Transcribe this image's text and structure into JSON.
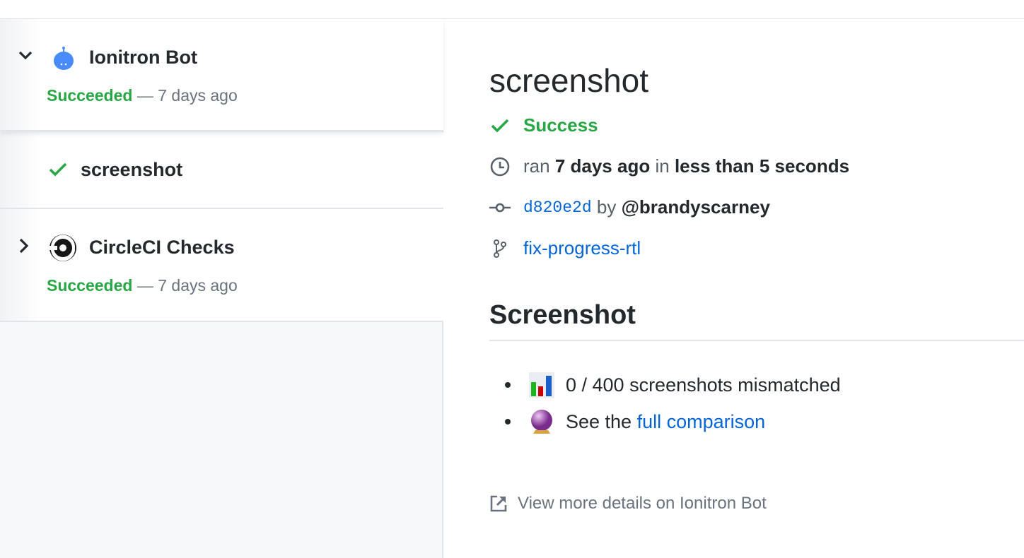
{
  "sidebar": {
    "suites": [
      {
        "name": "Ionitron Bot",
        "status": "Succeeded",
        "separator": "—",
        "time": "7 days ago",
        "expanded": true,
        "icon": "ionitron-bot-icon"
      },
      {
        "name": "CircleCI Checks",
        "status": "Succeeded",
        "separator": "—",
        "time": "7 days ago",
        "expanded": false,
        "icon": "circleci-icon"
      }
    ],
    "run": {
      "name": "screenshot",
      "icon": "check-icon"
    }
  },
  "detail": {
    "title": "screenshot",
    "status": "Success",
    "ran_prefix": "ran",
    "ran_time": "7 days ago",
    "ran_in": "in",
    "duration": "less than 5 seconds",
    "commit": "d820e2d",
    "by": "by",
    "author": "@brandyscarney",
    "branch": "fix-progress-rtl",
    "section_heading": "Screenshot",
    "bullets": {
      "mismatch": "0 / 400 screenshots mismatched",
      "see_prefix": "See the",
      "comparison_link": "full comparison"
    },
    "footer_link": "View more details on Ionitron Bot"
  },
  "colors": {
    "success": "#28a745",
    "link": "#0366d6",
    "muted": "#6a737d"
  }
}
